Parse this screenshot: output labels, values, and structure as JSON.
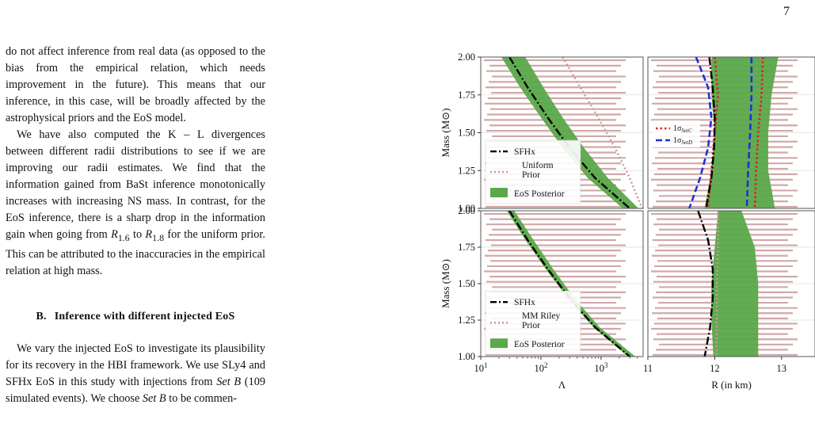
{
  "page_number": "7",
  "paragraphs": [
    {
      "id": "p1",
      "text": "do not affect inference from real data (as opposed to the bias from the empirical relation, which needs improvement in the future). This means that our inference, in this case, will be broadly affected by the astrophysical priors and the EoS model.",
      "indent": false
    },
    {
      "id": "p2",
      "text_before": "We have also computed the K – L divergences between different radii distributions to see if we are improving our radii estimates. We find that the information gained from BaSt inference monotonically increases with increasing NS mass. In contrast, for the EoS inference, there is a sharp drop in the information gain when going from ",
      "sym1": "R",
      "sub1": "1.6",
      "middle": " to ",
      "sym2": "R",
      "sub2": "1.8",
      "text_after": " for the uniform prior. This can be attributed to the inaccuracies in the empirical relation at high mass.",
      "indent": true
    }
  ],
  "section": {
    "number": "B.",
    "title": "Inference with different injected EoS"
  },
  "paragraph3": {
    "t1": "We vary the injected EoS to investigate its plausibility for its recovery in the HBI framework. We use SLy4 and SFHx EoS in this study with injections from ",
    "set1": "Set B",
    "t2": " (109 simulated events). We choose ",
    "set2": "Set B",
    "t3": " to be commen-"
  },
  "figure": {
    "ylabel": "Mass (M⊙)",
    "y_ticks": [
      "1.00",
      "1.25",
      "1.50",
      "1.75",
      "2.00"
    ],
    "lambda_ticks": [
      {
        "base": "10",
        "exp": "1"
      },
      {
        "base": "10",
        "exp": "2"
      },
      {
        "base": "10",
        "exp": "3"
      }
    ],
    "radius_ticks": [
      "11",
      "12",
      "13"
    ],
    "xlabel_lambda": "Λ",
    "xlabel_radius": "R (in km)",
    "colors": {
      "posterior": "#5aa84a",
      "sfhx": "#000000",
      "prior_bars": "#c99a9a",
      "prior_dots": "#c99a9a",
      "set_c": "#e0201b",
      "set_d": "#1f2fd6",
      "panel_border": "#555555",
      "grid": "#dddddd"
    },
    "top_legend": {
      "sfhx": "SFHx",
      "prior_line1": "Uniform",
      "prior_line2": "Prior",
      "posterior": "EoS Posterior"
    },
    "bottom_legend": {
      "sfhx": "SFHx",
      "prior_line1": "MM Riley",
      "prior_line2": "Prior",
      "posterior": "EoS Posterior"
    },
    "set_legend": {
      "c_sigma": "1σ",
      "c_sub": "SetC",
      "d_sigma": "1σ",
      "d_sub": "SetD"
    }
  },
  "chart_data": [
    {
      "type": "area",
      "panel": "top-left",
      "x_scale": "log",
      "xlim": [
        10,
        5000
      ],
      "ylim": [
        1.0,
        2.0
      ],
      "series": [
        {
          "name": "SFHx",
          "style": "dash-dot",
          "points": [
            [
              30,
              2.0
            ],
            [
              60,
              1.8
            ],
            [
              130,
              1.6
            ],
            [
              300,
              1.4
            ],
            [
              800,
              1.2
            ],
            [
              3000,
              1.0
            ]
          ]
        },
        {
          "name": "EoS Posterior",
          "band_left": [
            [
              22,
              2.0
            ],
            [
              45,
              1.8
            ],
            [
              100,
              1.6
            ],
            [
              230,
              1.4
            ],
            [
              600,
              1.2
            ],
            [
              2300,
              1.0
            ]
          ],
          "band_right": [
            [
              55,
              2.0
            ],
            [
              110,
              1.8
            ],
            [
              230,
              1.6
            ],
            [
              520,
              1.4
            ],
            [
              1300,
              1.2
            ],
            [
              4200,
              1.0
            ]
          ]
        },
        {
          "name": "Uniform Prior",
          "style": "dotted",
          "points": [
            [
              230,
              2.0
            ],
            [
              450,
              1.8
            ],
            [
              900,
              1.6
            ],
            [
              1700,
              1.4
            ],
            [
              3000,
              1.2
            ],
            [
              4800,
              1.0
            ]
          ]
        }
      ]
    },
    {
      "type": "area",
      "panel": "top-right",
      "xlim": [
        11.0,
        13.5
      ],
      "ylim": [
        1.0,
        2.0
      ],
      "series": [
        {
          "name": "EoS Posterior",
          "band_left": [
            [
              11.95,
              2.0
            ],
            [
              11.95,
              1.75
            ],
            [
              12.0,
              1.5
            ],
            [
              11.95,
              1.25
            ],
            [
              11.85,
              1.0
            ]
          ],
          "band_right": [
            [
              12.95,
              2.0
            ],
            [
              12.85,
              1.75
            ],
            [
              12.8,
              1.5
            ],
            [
              12.8,
              1.25
            ],
            [
              12.9,
              1.0
            ]
          ]
        },
        {
          "name": "1σ SetC",
          "style": "dotted",
          "left": [
            [
              12.0,
              2.0
            ],
            [
              12.05,
              1.75
            ],
            [
              12.0,
              1.5
            ],
            [
              11.95,
              1.25
            ],
            [
              11.9,
              1.0
            ]
          ],
          "right": [
            [
              12.72,
              2.0
            ],
            [
              12.7,
              1.75
            ],
            [
              12.65,
              1.5
            ],
            [
              12.62,
              1.25
            ],
            [
              12.6,
              1.0
            ]
          ]
        },
        {
          "name": "1σ SetD",
          "style": "dashed",
          "left": [
            [
              11.72,
              2.0
            ],
            [
              11.9,
              1.8
            ],
            [
              11.95,
              1.6
            ],
            [
              11.9,
              1.4
            ],
            [
              11.78,
              1.2
            ],
            [
              11.62,
              1.0
            ]
          ],
          "right": [
            [
              12.55,
              2.0
            ],
            [
              12.55,
              1.75
            ],
            [
              12.53,
              1.5
            ],
            [
              12.5,
              1.25
            ],
            [
              12.48,
              1.0
            ]
          ]
        },
        {
          "name": "SFHx",
          "style": "dash-dot",
          "points": [
            [
              11.92,
              2.0
            ],
            [
              11.97,
              1.8
            ],
            [
              12.0,
              1.6
            ],
            [
              11.99,
              1.4
            ],
            [
              11.95,
              1.2
            ],
            [
              11.87,
              1.0
            ]
          ]
        }
      ]
    },
    {
      "type": "area",
      "panel": "bottom-left",
      "x_scale": "log",
      "xlim": [
        10,
        5000
      ],
      "ylim": [
        1.0,
        2.0
      ],
      "series": [
        {
          "name": "SFHx",
          "style": "dash-dot",
          "points": [
            [
              30,
              2.0
            ],
            [
              60,
              1.8
            ],
            [
              130,
              1.6
            ],
            [
              300,
              1.4
            ],
            [
              800,
              1.2
            ],
            [
              3000,
              1.0
            ]
          ]
        },
        {
          "name": "EoS Posterior",
          "band_left": [
            [
              27,
              2.0
            ],
            [
              55,
              1.8
            ],
            [
              120,
              1.6
            ],
            [
              280,
              1.4
            ],
            [
              750,
              1.2
            ],
            [
              2800,
              1.0
            ]
          ],
          "band_right": [
            [
              36,
              2.0
            ],
            [
              75,
              1.8
            ],
            [
              160,
              1.6
            ],
            [
              360,
              1.4
            ],
            [
              950,
              1.2
            ],
            [
              3700,
              1.0
            ]
          ]
        }
      ]
    },
    {
      "type": "area",
      "panel": "bottom-right",
      "xlim": [
        11.0,
        13.5
      ],
      "ylim": [
        1.0,
        2.0
      ],
      "series": [
        {
          "name": "EoS Posterior",
          "band_left": [
            [
              12.05,
              2.0
            ],
            [
              12.0,
              1.75
            ],
            [
              11.95,
              1.5
            ],
            [
              11.95,
              1.25
            ],
            [
              11.98,
              1.0
            ]
          ],
          "band_right": [
            [
              12.4,
              2.0
            ],
            [
              12.6,
              1.75
            ],
            [
              12.65,
              1.5
            ],
            [
              12.65,
              1.25
            ],
            [
              12.65,
              1.0
            ]
          ]
        },
        {
          "name": "MM Riley Prior",
          "style": "dotted",
          "points": [
            [
              12.05,
              2.0
            ],
            [
              12.05,
              1.75
            ],
            [
              12.03,
              1.5
            ],
            [
              12.03,
              1.25
            ],
            [
              12.03,
              1.0
            ]
          ]
        },
        {
          "name": "SFHx",
          "style": "dash-dot",
          "points": [
            [
              11.75,
              2.0
            ],
            [
              11.9,
              1.8
            ],
            [
              11.97,
              1.6
            ],
            [
              11.97,
              1.4
            ],
            [
              11.93,
              1.2
            ],
            [
              11.85,
              1.0
            ]
          ]
        }
      ]
    }
  ]
}
